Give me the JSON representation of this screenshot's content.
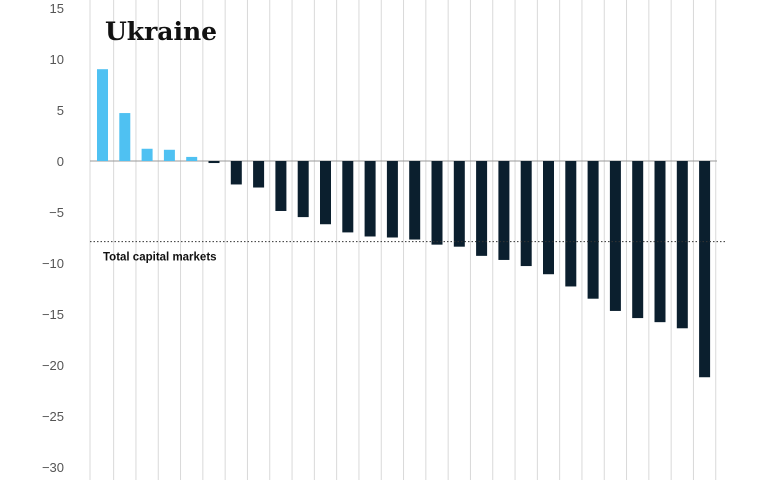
{
  "chart_data": {
    "type": "bar",
    "title": "Ukraine",
    "xlabel": "",
    "ylabel": "",
    "ylim": [
      -30,
      15
    ],
    "yticks": [
      15,
      10,
      5,
      0,
      -5,
      -10,
      -15,
      -20,
      -25,
      -30
    ],
    "ytick_labels": [
      "15",
      "10",
      "5",
      "0",
      "−5",
      "−10",
      "−15",
      "−20",
      "−25",
      "−30"
    ],
    "grid": "vertical",
    "values": [
      9.0,
      4.7,
      1.2,
      1.1,
      0.4,
      -0.2,
      -2.3,
      -2.6,
      -4.9,
      -5.5,
      -6.2,
      -7.0,
      -7.4,
      -7.5,
      -7.7,
      -8.2,
      -8.4,
      -9.3,
      -9.7,
      -10.3,
      -11.1,
      -12.3,
      -13.5,
      -14.7,
      -15.4,
      -15.8,
      -16.4,
      -21.2
    ],
    "reference_line": {
      "label": "Total capital markets",
      "value": -7.9
    },
    "colors": {
      "positive": "#4fc1f2",
      "negative": "#0b1f2e",
      "grid": "#d9d9d9",
      "zero_line": "#999999"
    }
  }
}
